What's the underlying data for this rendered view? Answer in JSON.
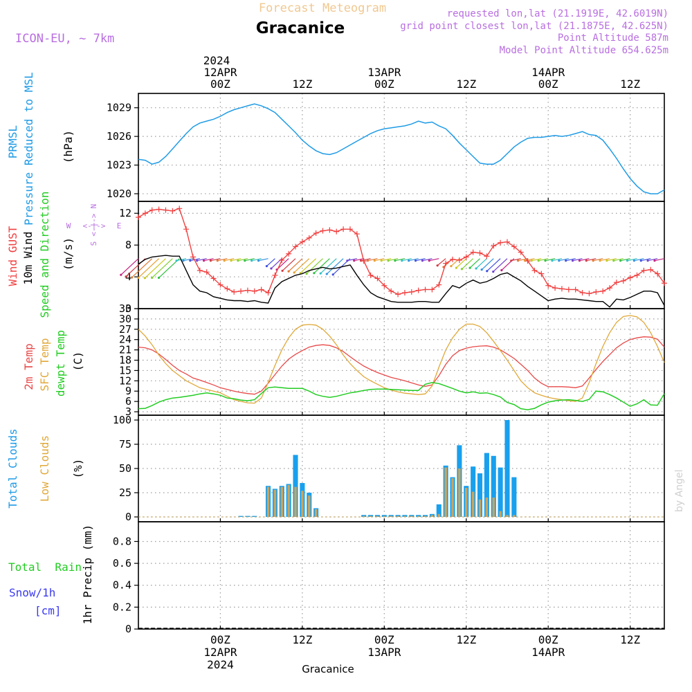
{
  "header": {
    "title": "Forecast Meteogram",
    "location": "Gracanice",
    "model": "ICON-EU, ~ 7km",
    "requested": "requested lon,lat (21.1919E, 42.6019N)",
    "grid_point": "grid point closest lon,lat (21.1875E, 42.625N)",
    "point_altitude": "Point Altitude 587m",
    "model_altitude": "Model Point Altitude 654.625m",
    "footer_location": "Gracanice",
    "watermark": "by Angel"
  },
  "time_axis": {
    "top_year": "2024",
    "ticks": [
      {
        "h": 12,
        "top": "00Z",
        "date": "12APR",
        "year": "2024"
      },
      {
        "h": 24,
        "top": "12Z",
        "date": "",
        "year": ""
      },
      {
        "h": 36,
        "top": "00Z",
        "date": "13APR",
        "year": ""
      },
      {
        "h": 48,
        "top": "12Z",
        "date": "",
        "year": ""
      },
      {
        "h": 60,
        "top": "00Z",
        "date": "14APR",
        "year": ""
      },
      {
        "h": 72,
        "top": "12Z",
        "date": "",
        "year": ""
      }
    ],
    "range_hours": [
      0,
      77
    ],
    "start_note": "hour 0 = 11APR 12Z"
  },
  "colors": {
    "pressure": "#1e9be6",
    "gust": "#f04040",
    "wind": "#000000",
    "temp2m": "#e84848",
    "sfc": "#e0a838",
    "dew": "#22cc22",
    "total_cloud": "#18a0ee",
    "low_cloud": "#c8a460",
    "rain": "#22cc22",
    "snow": "#3a3aee",
    "model": "#b86ee0",
    "title": "#f0c890"
  },
  "chart_data": [
    {
      "type": "line",
      "name": "pressure",
      "label_main": "PRMSL",
      "label_sub": "Pressure Reduced to MSL",
      "unit": "(hPa)",
      "ylim": [
        1019.2,
        1030.5
      ],
      "yticks": [
        1020,
        1023,
        1026,
        1029
      ],
      "x": [
        0,
        1,
        2,
        3,
        4,
        5,
        6,
        7,
        8,
        9,
        10,
        11,
        12,
        13,
        14,
        15,
        16,
        17,
        18,
        19,
        20,
        21,
        22,
        23,
        24,
        25,
        26,
        27,
        28,
        29,
        30,
        31,
        32,
        33,
        34,
        35,
        36,
        37,
        38,
        39,
        40,
        41,
        42,
        43,
        44,
        45,
        46,
        47,
        48,
        49,
        50,
        51,
        52,
        53,
        54,
        55,
        56,
        57,
        58,
        59,
        60,
        61,
        62,
        63,
        64,
        65,
        66,
        67,
        68,
        69,
        70,
        71,
        72,
        73,
        74,
        75,
        76,
        77
      ],
      "series": [
        {
          "name": "PRMSL",
          "values": [
            1023.6,
            1023.5,
            1023.1,
            1023.3,
            1023.9,
            1024.7,
            1025.5,
            1026.3,
            1027.0,
            1027.4,
            1027.6,
            1027.8,
            1028.1,
            1028.5,
            1028.8,
            1029.0,
            1029.2,
            1029.4,
            1029.2,
            1028.9,
            1028.5,
            1027.8,
            1027.1,
            1026.4,
            1025.6,
            1025.0,
            1024.5,
            1024.2,
            1024.1,
            1024.3,
            1024.7,
            1025.1,
            1025.5,
            1025.9,
            1026.3,
            1026.6,
            1026.8,
            1026.9,
            1027.0,
            1027.1,
            1027.3,
            1027.6,
            1027.4,
            1027.5,
            1027.1,
            1026.8,
            1026.1,
            1025.3,
            1024.6,
            1023.9,
            1023.2,
            1023.1,
            1023.1,
            1023.5,
            1024.2,
            1024.9,
            1025.4,
            1025.8,
            1025.9,
            1025.9,
            1026.0,
            1026.1,
            1026.0,
            1026.1,
            1026.3,
            1026.5,
            1026.2,
            1026.1,
            1025.6,
            1024.7,
            1023.7,
            1022.6,
            1021.6,
            1020.8,
            1020.2,
            1020.0,
            1020.0,
            1020.4
          ]
        }
      ]
    },
    {
      "type": "line",
      "name": "wind",
      "label_gust": "Wind GUST",
      "label_wind": "10m Wind",
      "label_dir": "Speed and Direction",
      "unit": "(m/s)",
      "ylim": [
        0,
        13.5
      ],
      "yticks": [
        0,
        4,
        8,
        12
      ],
      "compass": {
        "n": "N",
        "s": "S",
        "w": "W",
        "e": "E",
        "arrow": "<-|->"
      },
      "x": [
        0,
        1,
        2,
        3,
        4,
        5,
        6,
        7,
        8,
        9,
        10,
        11,
        12,
        13,
        14,
        15,
        16,
        17,
        18,
        19,
        20,
        21,
        22,
        23,
        24,
        25,
        26,
        27,
        28,
        29,
        30,
        31,
        32,
        33,
        34,
        35,
        36,
        37,
        38,
        39,
        40,
        41,
        42,
        43,
        44,
        45,
        46,
        47,
        48,
        49,
        50,
        51,
        52,
        53,
        54,
        55,
        56,
        57,
        58,
        59,
        60,
        61,
        62,
        63,
        64,
        65,
        66,
        67,
        68,
        69,
        70,
        71,
        72,
        73,
        74,
        75,
        76,
        77
      ],
      "series": [
        {
          "name": "Wind GUST",
          "values": [
            11.5,
            12.0,
            12.4,
            12.5,
            12.4,
            12.3,
            12.6,
            10.0,
            6.5,
            4.8,
            4.6,
            3.8,
            3.0,
            2.5,
            2.1,
            2.2,
            2.3,
            2.2,
            2.4,
            2.0,
            4.2,
            6.1,
            6.9,
            7.8,
            8.4,
            8.9,
            9.5,
            9.8,
            9.9,
            9.7,
            10.0,
            10.0,
            9.4,
            6.0,
            4.2,
            3.8,
            2.9,
            2.2,
            1.8,
            2.0,
            2.1,
            2.3,
            2.4,
            2.4,
            3.0,
            5.7,
            6.2,
            6.1,
            6.5,
            7.1,
            7.0,
            6.6,
            7.9,
            8.3,
            8.4,
            7.8,
            7.1,
            6.0,
            4.8,
            4.4,
            2.9,
            2.6,
            2.5,
            2.4,
            2.4,
            2.0,
            1.9,
            2.1,
            2.2,
            2.6,
            3.3,
            3.5,
            3.9,
            4.2,
            4.8,
            4.9,
            4.4,
            3.2
          ]
        },
        {
          "name": "10m Wind",
          "values": [
            5.6,
            6.2,
            6.5,
            6.6,
            6.7,
            6.6,
            6.6,
            4.8,
            3.0,
            2.2,
            2.0,
            1.5,
            1.3,
            1.1,
            1.0,
            1.0,
            0.9,
            1.0,
            0.8,
            0.7,
            2.6,
            3.4,
            3.8,
            4.2,
            4.4,
            4.8,
            5.0,
            5.2,
            5.0,
            5.1,
            5.3,
            5.5,
            4.2,
            3.0,
            2.0,
            1.5,
            1.2,
            0.9,
            0.8,
            0.8,
            0.8,
            0.9,
            0.9,
            0.8,
            0.8,
            1.9,
            2.9,
            2.6,
            3.2,
            3.6,
            3.2,
            3.4,
            3.8,
            4.3,
            4.5,
            4.0,
            3.5,
            2.8,
            2.2,
            1.6,
            1.0,
            1.2,
            1.3,
            1.2,
            1.2,
            1.1,
            1.0,
            0.9,
            0.9,
            0.2,
            1.2,
            1.1,
            1.4,
            1.8,
            2.2,
            2.2,
            2.0,
            0.4
          ]
        }
      ]
    },
    {
      "type": "line",
      "name": "temperature",
      "label_t2m": "2m Temp",
      "label_sfc": "SFC Temp",
      "label_dew": "dewpt Temp",
      "unit": "(C)",
      "ylim": [
        2,
        33
      ],
      "yticks": [
        3,
        6,
        9,
        12,
        15,
        18,
        21,
        24,
        27,
        30,
        33
      ],
      "x": [
        0,
        1,
        2,
        3,
        4,
        5,
        6,
        7,
        8,
        9,
        10,
        11,
        12,
        13,
        14,
        15,
        16,
        17,
        18,
        19,
        20,
        21,
        22,
        23,
        24,
        25,
        26,
        27,
        28,
        29,
        30,
        31,
        32,
        33,
        34,
        35,
        36,
        37,
        38,
        39,
        40,
        41,
        42,
        43,
        44,
        45,
        46,
        47,
        48,
        49,
        50,
        51,
        52,
        53,
        54,
        55,
        56,
        57,
        58,
        59,
        60,
        61,
        62,
        63,
        64,
        65,
        66,
        67,
        68,
        69,
        70,
        71,
        72,
        73,
        74,
        75,
        76,
        77
      ],
      "series": [
        {
          "name": "2m Temp",
          "values": [
            21.8,
            21.6,
            21.0,
            19.8,
            18.2,
            16.5,
            15.0,
            14.0,
            12.8,
            12.2,
            11.5,
            10.8,
            10.0,
            9.5,
            9.0,
            8.6,
            8.3,
            8.1,
            9.0,
            11.3,
            13.8,
            16.3,
            18.3,
            19.7,
            20.8,
            21.8,
            22.3,
            22.5,
            22.3,
            21.6,
            20.5,
            19.0,
            17.6,
            16.3,
            15.3,
            14.4,
            13.7,
            13.0,
            12.5,
            12.0,
            11.4,
            10.8,
            10.4,
            10.8,
            13.5,
            16.8,
            19.3,
            20.8,
            21.5,
            21.9,
            22.1,
            22.2,
            21.8,
            21.0,
            19.8,
            18.5,
            16.8,
            15.0,
            12.8,
            11.3,
            10.3,
            10.3,
            10.3,
            10.2,
            10.0,
            10.5,
            12.8,
            15.3,
            17.6,
            19.6,
            21.6,
            23.0,
            24.0,
            24.5,
            24.8,
            24.7,
            24.1,
            21.8
          ]
        },
        {
          "name": "SFC Temp",
          "values": [
            27.0,
            25.0,
            22.5,
            19.5,
            17.0,
            15.0,
            13.5,
            12.0,
            11.0,
            10.0,
            9.5,
            9.0,
            8.5,
            7.5,
            6.5,
            6.0,
            5.6,
            5.5,
            7.0,
            11.5,
            16.5,
            21.0,
            24.5,
            27.0,
            28.2,
            28.4,
            28.2,
            27.0,
            25.0,
            22.5,
            19.5,
            17.0,
            15.0,
            13.2,
            12.0,
            11.0,
            10.0,
            9.3,
            8.8,
            8.4,
            8.2,
            8.0,
            8.2,
            10.5,
            16.0,
            21.0,
            24.5,
            27.0,
            28.5,
            28.5,
            27.8,
            26.0,
            23.5,
            20.8,
            18.0,
            15.0,
            12.0,
            10.0,
            8.5,
            7.8,
            7.2,
            6.8,
            6.5,
            6.2,
            6.0,
            7.0,
            11.5,
            17.0,
            22.0,
            26.0,
            29.0,
            30.7,
            31.0,
            30.6,
            29.0,
            26.0,
            22.0,
            17.3
          ]
        },
        {
          "name": "dewpt Temp",
          "values": [
            3.9,
            4.0,
            4.8,
            5.8,
            6.5,
            7.0,
            7.2,
            7.5,
            7.8,
            8.2,
            8.5,
            8.2,
            7.8,
            7.0,
            6.8,
            6.4,
            6.2,
            6.5,
            8.3,
            10.0,
            10.2,
            10.0,
            9.8,
            9.8,
            9.8,
            9.0,
            8.0,
            7.5,
            7.2,
            7.5,
            8.0,
            8.5,
            8.8,
            9.2,
            9.5,
            9.6,
            9.6,
            9.5,
            9.4,
            9.3,
            9.2,
            9.2,
            11.0,
            11.5,
            11.2,
            10.5,
            9.8,
            9.0,
            8.5,
            8.8,
            8.4,
            8.5,
            8.0,
            7.3,
            5.7,
            5.1,
            3.9,
            3.6,
            4.0,
            5.0,
            5.8,
            6.2,
            6.4,
            6.5,
            6.3,
            6.0,
            6.6,
            9.0,
            8.8,
            8.0,
            7.0,
            5.8,
            4.6,
            5.3,
            6.5,
            5.0,
            4.9,
            8.3
          ]
        }
      ]
    },
    {
      "type": "bar",
      "name": "clouds",
      "label_total": "Total Clouds",
      "label_low": "Low Clouds",
      "unit": "(%)",
      "ylim": [
        -5,
        105
      ],
      "yticks": [
        0,
        25,
        50,
        75,
        100
      ],
      "x": [
        0,
        1,
        2,
        3,
        4,
        5,
        6,
        7,
        8,
        9,
        10,
        11,
        12,
        13,
        14,
        15,
        16,
        17,
        18,
        19,
        20,
        21,
        22,
        23,
        24,
        25,
        26,
        27,
        28,
        29,
        30,
        31,
        32,
        33,
        34,
        35,
        36,
        37,
        38,
        39,
        40,
        41,
        42,
        43,
        44,
        45,
        46,
        47,
        48,
        49,
        50,
        51,
        52,
        53,
        54,
        55,
        56,
        57,
        58,
        59,
        60,
        61,
        62,
        63,
        64,
        65,
        66,
        67,
        68,
        69,
        70,
        71,
        72,
        73,
        74,
        75,
        76,
        77
      ],
      "series": [
        {
          "name": "Total Clouds",
          "values": [
            0,
            0,
            0,
            0,
            0,
            0,
            0,
            0,
            0,
            0,
            0,
            0,
            0,
            0,
            0,
            1,
            1,
            1,
            0,
            32,
            29,
            32,
            34,
            64,
            35,
            25,
            9,
            0,
            0,
            0,
            0,
            0,
            0,
            2,
            2,
            2,
            2,
            2,
            2,
            2,
            2,
            2,
            2,
            3,
            13,
            53,
            41,
            74,
            32,
            52,
            45,
            66,
            63,
            51,
            100,
            41,
            0,
            0,
            0,
            0,
            0,
            0,
            0,
            0,
            0,
            0,
            0,
            0,
            0,
            0,
            0,
            0,
            0,
            0,
            0,
            0,
            0,
            0
          ]
        },
        {
          "name": "Low Clouds",
          "values": [
            0,
            0,
            0,
            0,
            0,
            0,
            0,
            0,
            0,
            0,
            0,
            0,
            0,
            0,
            0,
            0,
            0,
            0,
            0,
            31,
            28,
            31,
            33,
            31,
            27,
            22,
            8,
            0,
            0,
            0,
            0,
            0,
            0,
            1,
            1,
            1,
            1,
            1,
            1,
            1,
            1,
            1,
            1,
            2,
            3,
            51,
            40,
            50,
            30,
            26,
            18,
            20,
            20,
            6,
            2,
            2,
            0,
            0,
            0,
            0,
            0,
            0,
            0,
            0,
            0,
            0,
            0,
            0,
            0,
            0,
            0,
            0,
            0,
            0,
            0,
            0,
            0,
            0
          ]
        }
      ]
    },
    {
      "type": "bar",
      "name": "precip",
      "label_rain": "Total  Rain",
      "label_snow": "Snow/1h",
      "label_cm": "[cm]",
      "unit": "1hr Precip (mm)",
      "ylim": [
        0,
        0.98
      ],
      "yticks": [
        0,
        0.2,
        0.4,
        0.6,
        0.8
      ],
      "ytick_labels": [
        "0",
        "0.2",
        "0.4",
        "0.6",
        "0.8"
      ],
      "series": [
        {
          "name": "Total Rain",
          "values": []
        },
        {
          "name": "Snow/1h",
          "values": []
        }
      ]
    }
  ]
}
